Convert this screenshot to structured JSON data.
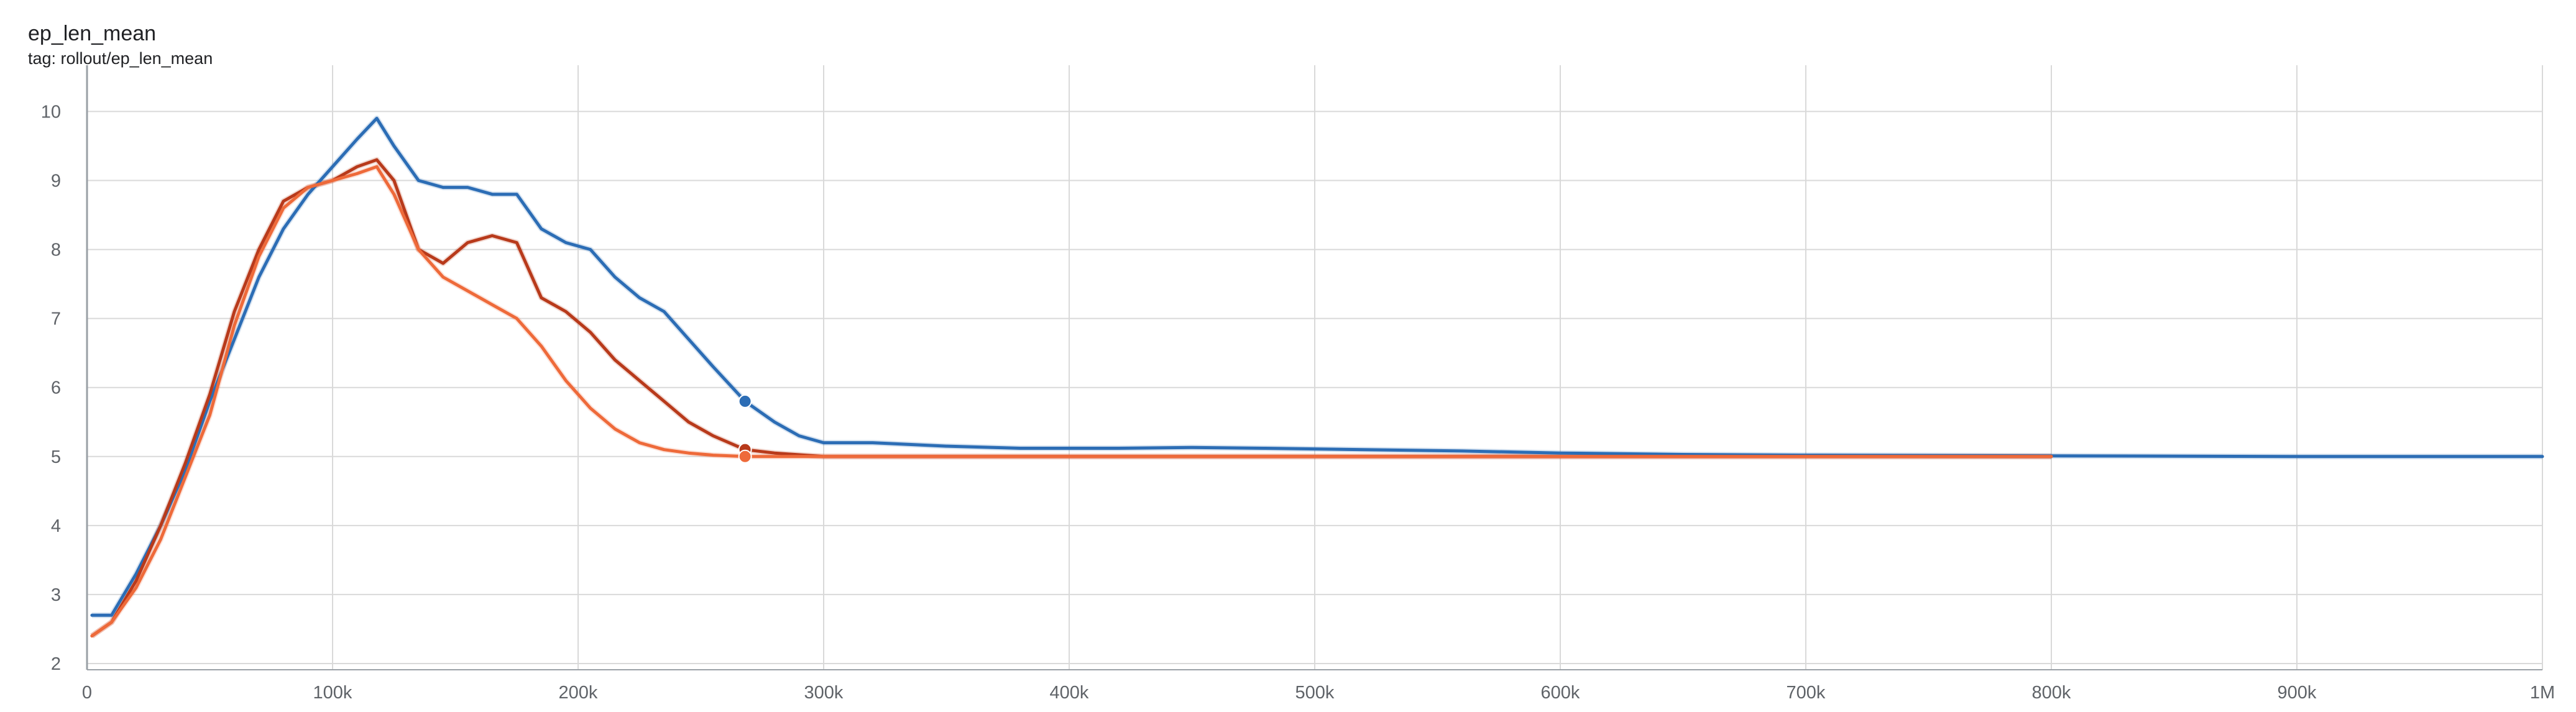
{
  "card": {
    "title": "ep_len_mean",
    "subtitle": "tag: rollout/ep_len_mean"
  },
  "colors": {
    "blue": "#2c6db5",
    "darkred": "#b83a1b",
    "orange": "#ee6a3a",
    "grid": "#d9d9d9",
    "axis": "#9aa0a6"
  },
  "chart_data": {
    "type": "line",
    "title": "ep_len_mean",
    "xlabel": "",
    "ylabel": "",
    "xlim": [
      0,
      1000000
    ],
    "ylim": [
      2,
      10.4
    ],
    "x_ticks": [
      0,
      100000,
      200000,
      300000,
      400000,
      500000,
      600000,
      700000,
      800000,
      900000,
      1000000
    ],
    "x_tick_labels": [
      "0",
      "100k",
      "200k",
      "300k",
      "400k",
      "500k",
      "600k",
      "700k",
      "800k",
      "900k",
      "1M"
    ],
    "y_ticks": [
      2,
      3,
      4,
      5,
      6,
      7,
      8,
      9,
      10
    ],
    "y_tick_labels": [
      "2",
      "3",
      "4",
      "5",
      "6",
      "7",
      "8",
      "9",
      "10"
    ],
    "grid": true,
    "series": [
      {
        "color": "#2c6db5",
        "x": [
          2000,
          10000,
          20000,
          30000,
          40000,
          50000,
          60000,
          70000,
          80000,
          90000,
          100000,
          110000,
          118000,
          125000,
          135000,
          145000,
          155000,
          165000,
          175000,
          185000,
          195000,
          205000,
          215000,
          225000,
          235000,
          245000,
          255000,
          268000,
          280000,
          290000,
          300000,
          320000,
          350000,
          380000,
          420000,
          450000,
          480000,
          520000,
          560000,
          600000,
          650000,
          700000,
          800000,
          900000,
          1000000
        ],
        "y": [
          2.7,
          2.7,
          3.3,
          4.0,
          4.8,
          5.8,
          6.7,
          7.6,
          8.3,
          8.8,
          9.2,
          9.6,
          9.9,
          9.5,
          9.0,
          8.9,
          8.9,
          8.8,
          8.8,
          8.3,
          8.1,
          8.0,
          7.6,
          7.3,
          7.1,
          6.7,
          6.3,
          5.8,
          5.5,
          5.3,
          5.2,
          5.2,
          5.15,
          5.12,
          5.12,
          5.13,
          5.12,
          5.1,
          5.08,
          5.05,
          5.03,
          5.02,
          5.01,
          5.0,
          5.0
        ]
      },
      {
        "color": "#b83a1b",
        "x": [
          2000,
          10000,
          20000,
          30000,
          40000,
          50000,
          60000,
          70000,
          80000,
          90000,
          100000,
          110000,
          118000,
          125000,
          135000,
          145000,
          155000,
          165000,
          175000,
          185000,
          195000,
          205000,
          215000,
          225000,
          235000,
          245000,
          255000,
          268000,
          280000,
          300000,
          400000,
          500000,
          600000,
          700000,
          800000
        ],
        "y": [
          2.4,
          2.6,
          3.2,
          4.0,
          4.9,
          5.9,
          7.1,
          8.0,
          8.7,
          8.9,
          9.0,
          9.2,
          9.3,
          9.0,
          8.0,
          7.8,
          8.1,
          8.2,
          8.1,
          7.3,
          7.1,
          6.8,
          6.4,
          6.1,
          5.8,
          5.5,
          5.3,
          5.1,
          5.05,
          5.0,
          5.0,
          5.0,
          5.0,
          5.0,
          5.0
        ]
      },
      {
        "color": "#ee6a3a",
        "x": [
          2000,
          10000,
          20000,
          30000,
          40000,
          50000,
          60000,
          70000,
          80000,
          90000,
          100000,
          110000,
          118000,
          125000,
          135000,
          145000,
          155000,
          165000,
          175000,
          185000,
          195000,
          205000,
          215000,
          225000,
          235000,
          245000,
          255000,
          268000,
          280000,
          300000,
          400000,
          500000,
          600000,
          700000,
          800000
        ],
        "y": [
          2.4,
          2.6,
          3.1,
          3.8,
          4.7,
          5.6,
          6.9,
          7.9,
          8.6,
          8.9,
          9.0,
          9.1,
          9.2,
          8.8,
          8.0,
          7.6,
          7.4,
          7.2,
          7.0,
          6.6,
          6.1,
          5.7,
          5.4,
          5.2,
          5.1,
          5.05,
          5.02,
          5.0,
          5.0,
          5.0,
          5.0,
          5.0,
          5.0,
          5.0,
          5.0
        ]
      }
    ],
    "markers": [
      {
        "series": 0,
        "x": 268000,
        "y": 5.8
      },
      {
        "series": 1,
        "x": 268000,
        "y": 5.1
      },
      {
        "series": 2,
        "x": 268000,
        "y": 5.0
      }
    ]
  }
}
